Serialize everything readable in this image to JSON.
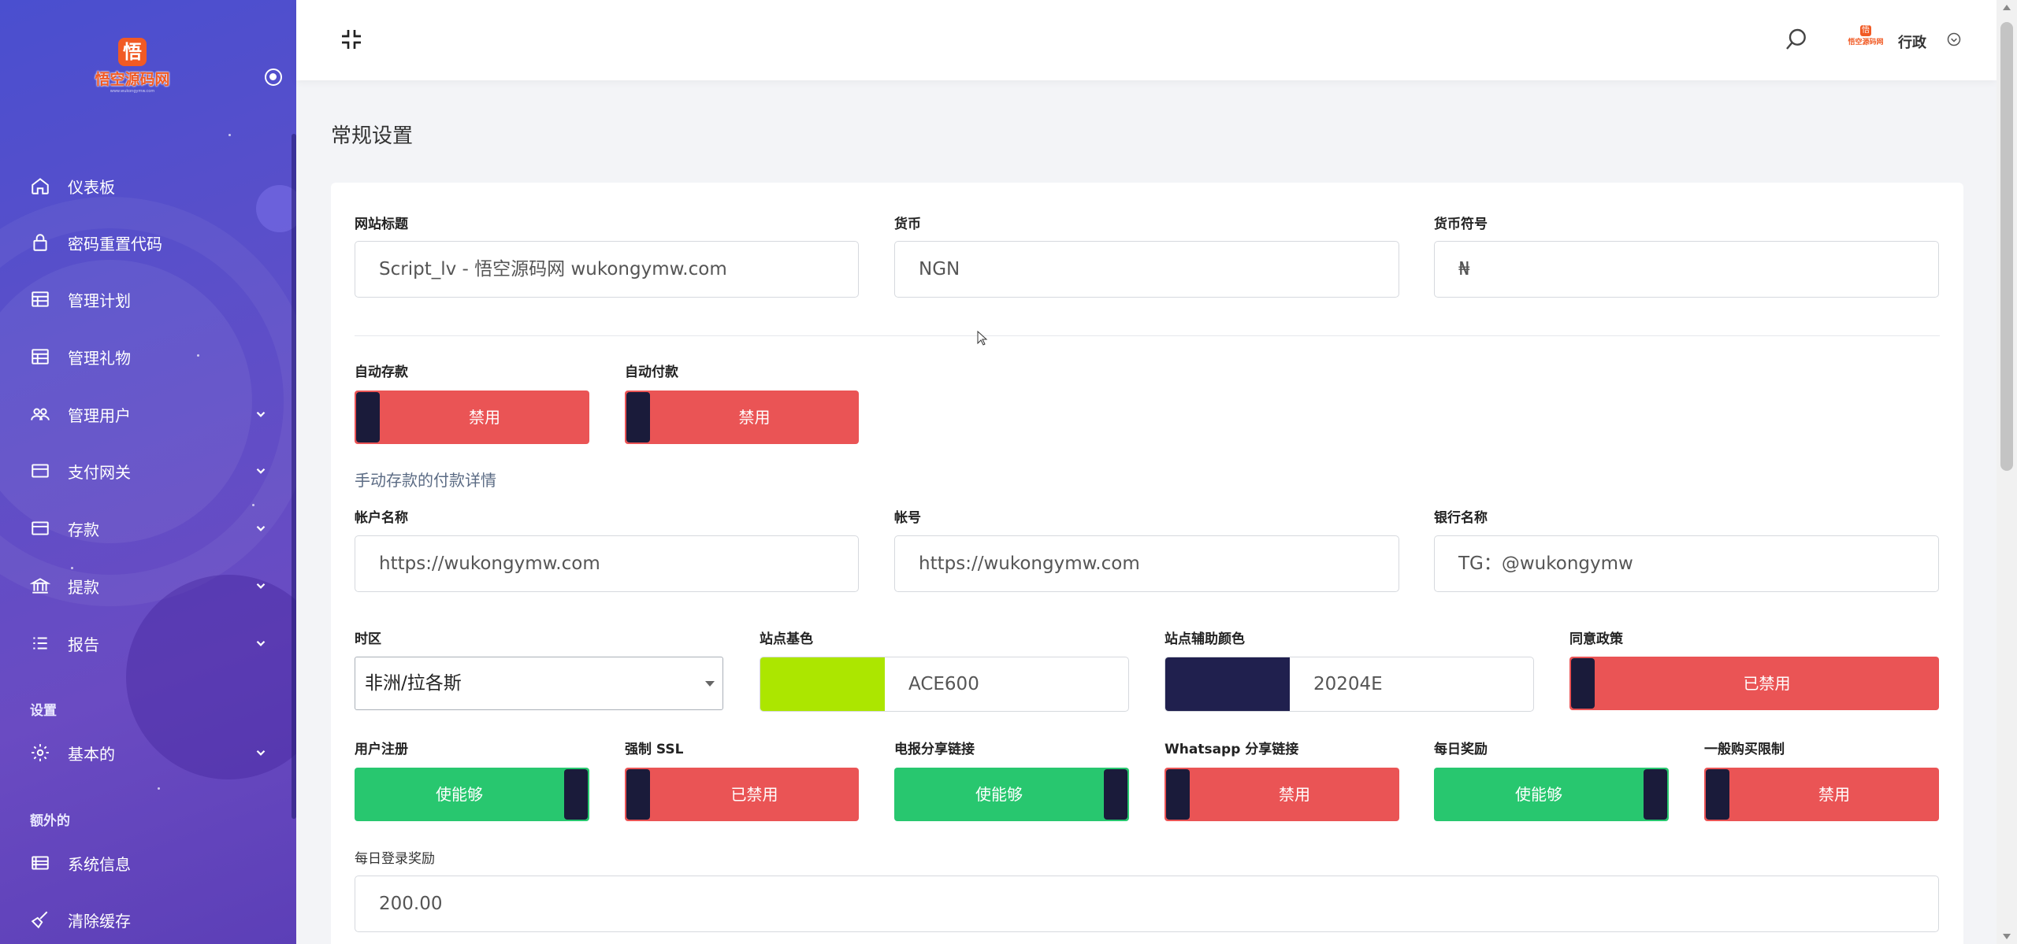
{
  "brand": {
    "logo_text": "悟空源码网",
    "logo_char": "悟",
    "logo_sub": "www.wukongymw.com"
  },
  "sidebar": {
    "items": [
      {
        "label": "仪表板",
        "icon": "home-icon"
      },
      {
        "label": "密码重置代码",
        "icon": "lock-icon"
      },
      {
        "label": "管理计划",
        "icon": "table-icon"
      },
      {
        "label": "管理礼物",
        "icon": "table-icon"
      },
      {
        "label": "管理用户",
        "icon": "users-icon"
      },
      {
        "label": "支付网关",
        "icon": "credit-card-icon"
      },
      {
        "label": "存款",
        "icon": "credit-card-icon"
      },
      {
        "label": "提款",
        "icon": "bank-icon"
      },
      {
        "label": "报告",
        "icon": "list-icon"
      },
      {
        "label": "基本的",
        "icon": "gear-icon"
      },
      {
        "label": "系统信息",
        "icon": "server-icon"
      },
      {
        "label": "清除缓存",
        "icon": "broom-icon"
      }
    ],
    "sections": {
      "settings": "设置",
      "extra": "额外的"
    }
  },
  "header": {
    "user_name": "行政",
    "avatar_text": "悟空源码网",
    "avatar_char": "悟"
  },
  "page": {
    "title": "常规设置"
  },
  "form": {
    "site_title": {
      "label": "网站标题",
      "value": "Script_lv - 悟空源码网 wukongymw.com"
    },
    "currency": {
      "label": "货币",
      "value": "NGN"
    },
    "currency_symbol": {
      "label": "货币符号",
      "value": "₦"
    },
    "auto_deposit": {
      "label": "自动存款",
      "state": "禁用"
    },
    "auto_withdraw": {
      "label": "自动付款",
      "state": "禁用"
    },
    "manual_section": "手动存款的付款详情",
    "account_name": {
      "label": "帐户名称",
      "value": "https://wukongymw.com"
    },
    "account_number": {
      "label": "帐号",
      "value": "https://wukongymw.com"
    },
    "bank_name": {
      "label": "银行名称",
      "value": "TG：@wukongymw"
    },
    "timezone": {
      "label": "时区",
      "value": "非洲/拉各斯"
    },
    "base_color": {
      "label": "站点基色",
      "value": "ACE600",
      "color": "#ACE600"
    },
    "secondary_color": {
      "label": "站点辅助颜色",
      "value": "20204E",
      "color": "#20204E"
    },
    "agree_policy": {
      "label": "同意政策",
      "state": "已禁用"
    },
    "user_registration": {
      "label": "用户注册",
      "state": "使能够"
    },
    "force_ssl": {
      "label": "强制 SSL",
      "state": "已禁用"
    },
    "telegram_share": {
      "label": "电报分享链接",
      "state": "使能够"
    },
    "whatsapp_share": {
      "label": "Whatsapp 分享链接",
      "state": "禁用"
    },
    "daily_bonus": {
      "label": "每日奖励",
      "state": "使能够"
    },
    "purchase_limit": {
      "label": "一般购买限制",
      "state": "禁用"
    },
    "daily_login_bonus": {
      "label": "每日登录奖励",
      "value": "200.00"
    }
  },
  "colors": {
    "enabled": "#28C76F",
    "disabled": "#EA5455",
    "knob": "#1A1B3A"
  }
}
